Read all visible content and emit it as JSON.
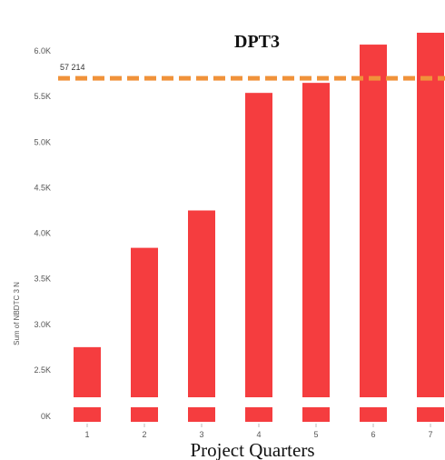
{
  "chart_data": {
    "type": "bar",
    "title": "DPT3",
    "xlabel": "Project Quarters",
    "ylabel": "Sum of NBDTC 3 N",
    "categories": [
      "1",
      "2",
      "3",
      "4",
      "5",
      "6",
      "7"
    ],
    "values": [
      2750,
      3840,
      4250,
      5540,
      5650,
      6070,
      6200
    ],
    "ylim": [
      0,
      6300
    ],
    "axis_break": true,
    "yticks": [
      {
        "value": 0,
        "label": "0K"
      },
      {
        "value": 2500,
        "label": "2.5K"
      },
      {
        "value": 3000,
        "label": "3.0K"
      },
      {
        "value": 3500,
        "label": "3.5K"
      },
      {
        "value": 4000,
        "label": "4.0K"
      },
      {
        "value": 4500,
        "label": "4.5K"
      },
      {
        "value": 5000,
        "label": "5.0K"
      },
      {
        "value": 5500,
        "label": "5.5K"
      },
      {
        "value": 6000,
        "label": "6.0K"
      }
    ],
    "reference_line": {
      "value": 5700,
      "label": "57 214",
      "color": "#F0923A",
      "style": "dashed"
    },
    "bar_color": "#F53D3F",
    "grid": false,
    "legend": "none"
  }
}
